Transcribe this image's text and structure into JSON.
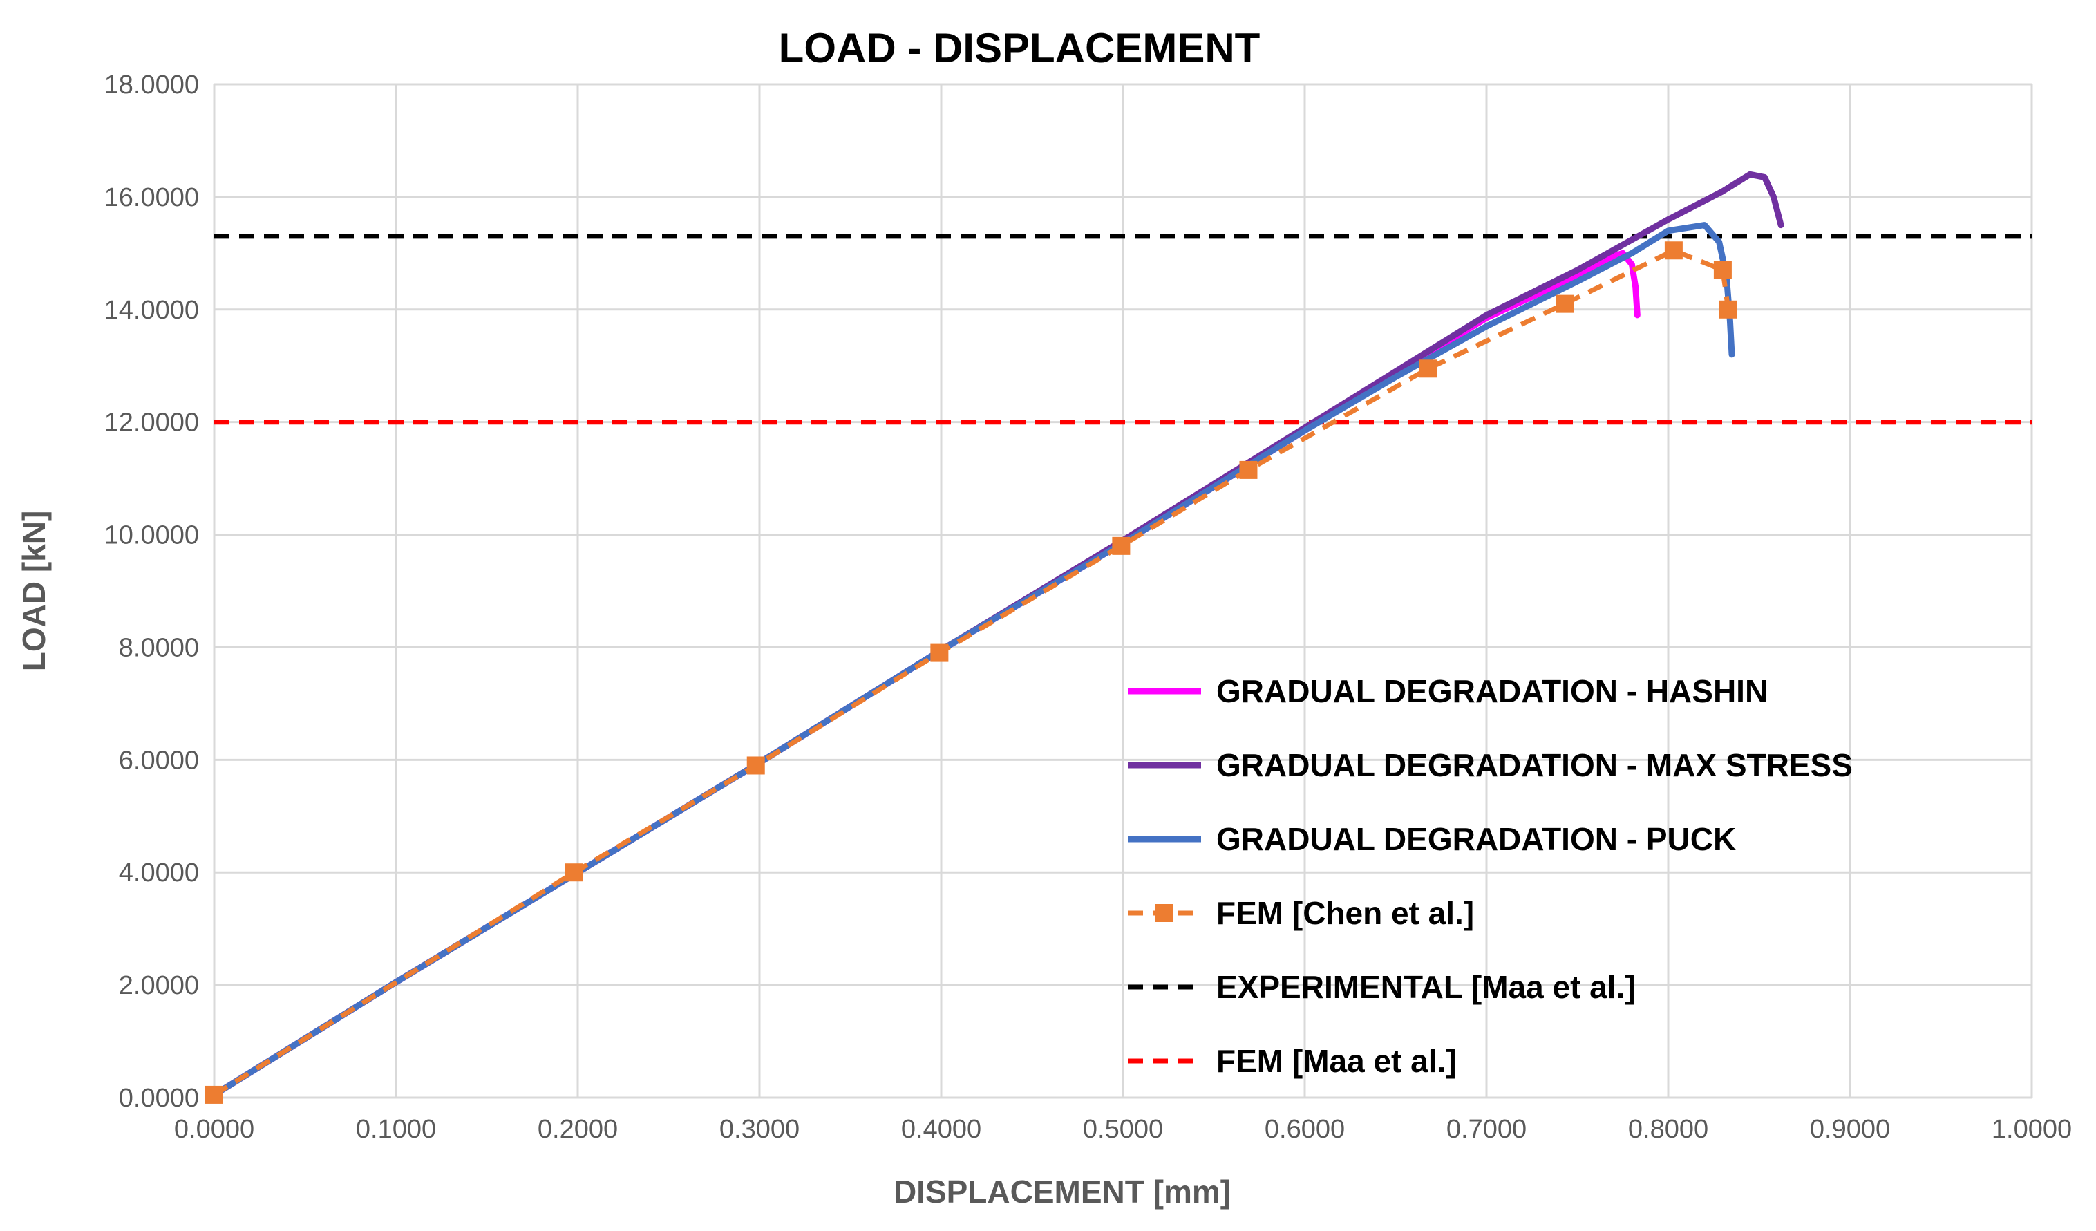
{
  "chart_data": {
    "type": "line",
    "title": "LOAD - DISPLACEMENT",
    "xlabel": "DISPLACEMENT [mm]",
    "ylabel": "LOAD [kN]",
    "xlim": [
      0,
      1.0
    ],
    "ylim": [
      0,
      18.0
    ],
    "x_ticks": [
      "0.0000",
      "0.1000",
      "0.2000",
      "0.3000",
      "0.4000",
      "0.5000",
      "0.6000",
      "0.7000",
      "0.8000",
      "0.9000",
      "1.0000"
    ],
    "y_ticks": [
      "0.0000",
      "2.0000",
      "4.0000",
      "6.0000",
      "8.0000",
      "10.0000",
      "12.0000",
      "14.0000",
      "16.0000",
      "18.0000"
    ],
    "grid": true,
    "legend_position": "bottom-right inside plot",
    "series": [
      {
        "name": "GRADUAL DEGRADATION - HASHIN",
        "color": "#FF00FF",
        "style": "solid",
        "points": [
          [
            0.0,
            0.05
          ],
          [
            0.05,
            1.05
          ],
          [
            0.1,
            2.05
          ],
          [
            0.2,
            4.0
          ],
          [
            0.3,
            5.95
          ],
          [
            0.4,
            7.95
          ],
          [
            0.5,
            9.85
          ],
          [
            0.6,
            11.85
          ],
          [
            0.65,
            12.85
          ],
          [
            0.7,
            13.85
          ],
          [
            0.75,
            14.6
          ],
          [
            0.77,
            14.95
          ],
          [
            0.775,
            15.0
          ],
          [
            0.78,
            14.8
          ],
          [
            0.782,
            14.4
          ],
          [
            0.783,
            13.9
          ]
        ]
      },
      {
        "name": "GRADUAL DEGRADATION - MAX STRESS",
        "color": "#7030A0",
        "style": "solid",
        "points": [
          [
            0.0,
            0.05
          ],
          [
            0.05,
            1.05
          ],
          [
            0.1,
            2.05
          ],
          [
            0.2,
            4.0
          ],
          [
            0.3,
            5.95
          ],
          [
            0.4,
            7.95
          ],
          [
            0.5,
            9.9
          ],
          [
            0.6,
            11.9
          ],
          [
            0.65,
            12.9
          ],
          [
            0.7,
            13.9
          ],
          [
            0.75,
            14.7
          ],
          [
            0.8,
            15.6
          ],
          [
            0.83,
            16.1
          ],
          [
            0.845,
            16.4
          ],
          [
            0.853,
            16.35
          ],
          [
            0.858,
            16.0
          ],
          [
            0.862,
            15.5
          ]
        ]
      },
      {
        "name": "GRADUAL DEGRADATION - PUCK",
        "color": "#4472C4",
        "style": "solid",
        "points": [
          [
            0.0,
            0.05
          ],
          [
            0.05,
            1.05
          ],
          [
            0.1,
            2.05
          ],
          [
            0.2,
            4.0
          ],
          [
            0.3,
            5.95
          ],
          [
            0.4,
            7.95
          ],
          [
            0.5,
            9.85
          ],
          [
            0.6,
            11.85
          ],
          [
            0.65,
            12.8
          ],
          [
            0.7,
            13.7
          ],
          [
            0.75,
            14.5
          ],
          [
            0.78,
            15.0
          ],
          [
            0.8,
            15.4
          ],
          [
            0.82,
            15.5
          ],
          [
            0.828,
            15.2
          ],
          [
            0.832,
            14.6
          ],
          [
            0.834,
            13.8
          ],
          [
            0.835,
            13.2
          ]
        ]
      },
      {
        "name": "FEM [Chen et al.]",
        "color": "#ED7D31",
        "style": "dashed",
        "markers": true,
        "points": [
          [
            0.0,
            0.05
          ],
          [
            0.198,
            4.0
          ],
          [
            0.298,
            5.9
          ],
          [
            0.399,
            7.9
          ],
          [
            0.499,
            9.8
          ],
          [
            0.569,
            11.15
          ],
          [
            0.668,
            12.95
          ],
          [
            0.743,
            14.1
          ],
          [
            0.803,
            15.05
          ],
          [
            0.83,
            14.7
          ],
          [
            0.833,
            14.0
          ]
        ]
      },
      {
        "name": "EXPERIMENTAL [Maa et al.]",
        "color": "#000000",
        "style": "dashed",
        "points": [
          [
            0.0,
            15.3
          ],
          [
            1.0,
            15.3
          ]
        ]
      },
      {
        "name": "FEM [Maa et al.]",
        "color": "#FF0000",
        "style": "dashed",
        "points": [
          [
            0.0,
            12.0
          ],
          [
            1.0,
            12.0
          ]
        ]
      }
    ]
  }
}
